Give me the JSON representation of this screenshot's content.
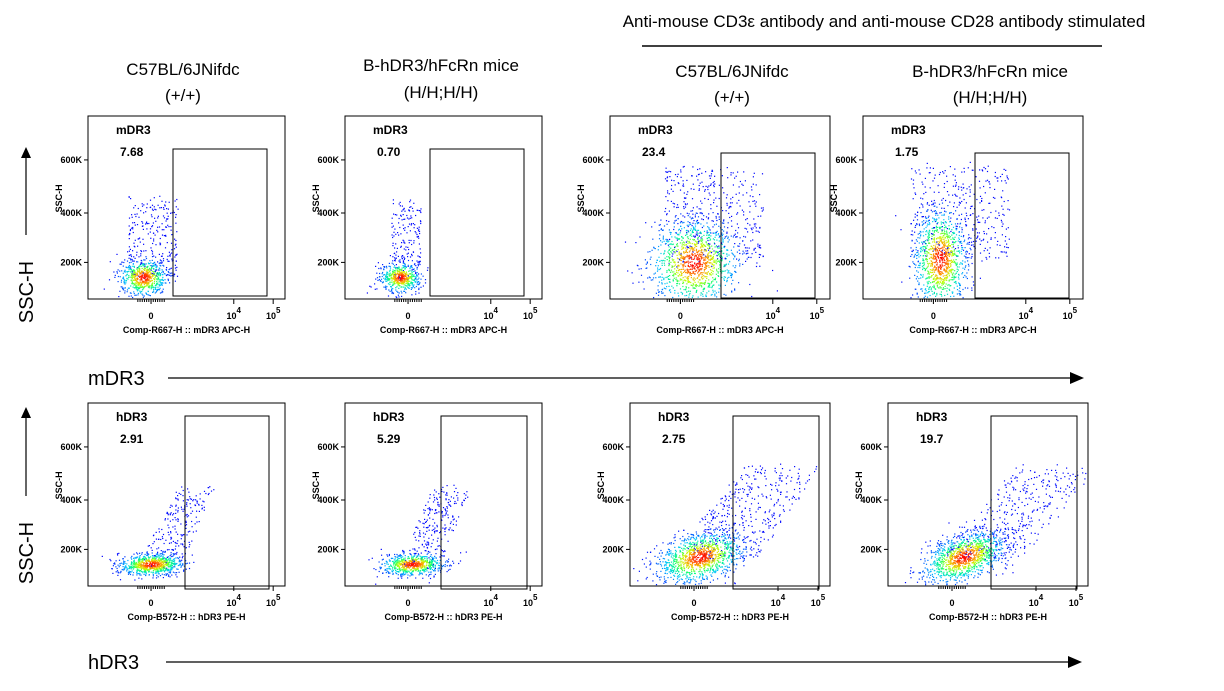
{
  "stim_header": "Anti-mouse CD3ε antibody and anti-mouse CD28 antibody stimulated",
  "column_headers": [
    {
      "line1": "C57BL/6JNifdc",
      "line2": "(+/+)"
    },
    {
      "line1": "B-hDR3/hFcRn mice",
      "line2": "(H/H;H/H)"
    },
    {
      "line1": "C57BL/6JNifdc",
      "line2": "(+/+)"
    },
    {
      "line1": "B-hDR3/hFcRn mice",
      "line2": "(H/H;H/H)"
    }
  ],
  "row_y_label": "SSC-H",
  "row_x_labels": [
    "mDR3",
    "hDR3"
  ],
  "colors": {
    "density_low": "#0000ff",
    "density_mid": "#00ffff",
    "density_high": "#ff0000",
    "gate": "#000000"
  },
  "chart_data": [
    {
      "type": "scatter",
      "ylabel": "SSC-H",
      "xlabel": "Comp-R667-H :: mDR3 APC-H",
      "y_ticks": [
        "200K",
        "400K",
        "600K"
      ],
      "x_ticks": [
        "0",
        "10^4",
        "10^5"
      ],
      "gate_name": "mDR3",
      "gate_value": "7.68",
      "stimulated": false
    },
    {
      "type": "scatter",
      "ylabel": "SSC-H",
      "xlabel": "Comp-R667-H :: mDR3 APC-H",
      "y_ticks": [
        "200K",
        "400K",
        "600K"
      ],
      "x_ticks": [
        "0",
        "10^4",
        "10^5"
      ],
      "gate_name": "mDR3",
      "gate_value": "0.70",
      "stimulated": false
    },
    {
      "type": "scatter",
      "ylabel": "SSC-H",
      "xlabel": "Comp-R667-H :: mDR3 APC-H",
      "y_ticks": [
        "200K",
        "400K",
        "600K"
      ],
      "x_ticks": [
        "0",
        "10^4",
        "10^5"
      ],
      "gate_name": "mDR3",
      "gate_value": "23.4",
      "stimulated": true
    },
    {
      "type": "scatter",
      "ylabel": "SSC-H",
      "xlabel": "Comp-R667-H :: mDR3 APC-H",
      "y_ticks": [
        "200K",
        "400K",
        "600K"
      ],
      "x_ticks": [
        "0",
        "10^4",
        "10^5"
      ],
      "gate_name": "mDR3",
      "gate_value": "1.75",
      "stimulated": true
    },
    {
      "type": "scatter",
      "ylabel": "SSC-H",
      "xlabel": "Comp-B572-H :: hDR3 PE-H",
      "y_ticks": [
        "200K",
        "400K",
        "600K"
      ],
      "x_ticks": [
        "0",
        "10^4",
        "10^5"
      ],
      "gate_name": "hDR3",
      "gate_value": "2.91",
      "stimulated": false
    },
    {
      "type": "scatter",
      "ylabel": "SSC-H",
      "xlabel": "Comp-B572-H :: hDR3 PE-H",
      "y_ticks": [
        "200K",
        "400K",
        "600K"
      ],
      "x_ticks": [
        "0",
        "10^4",
        "10^5"
      ],
      "gate_name": "hDR3",
      "gate_value": "5.29",
      "stimulated": false
    },
    {
      "type": "scatter",
      "ylabel": "SSC-H",
      "xlabel": "Comp-B572-H :: hDR3 PE-H",
      "y_ticks": [
        "200K",
        "400K",
        "600K"
      ],
      "x_ticks": [
        "0",
        "10^4",
        "10^5"
      ],
      "gate_name": "hDR3",
      "gate_value": "2.75",
      "stimulated": true
    },
    {
      "type": "scatter",
      "ylabel": "SSC-H",
      "xlabel": "Comp-B572-H :: hDR3 PE-H",
      "y_ticks": [
        "200K",
        "400K",
        "600K"
      ],
      "x_ticks": [
        "0",
        "10^4",
        "10^5"
      ],
      "gate_name": "hDR3",
      "gate_value": "19.7",
      "stimulated": true
    }
  ]
}
